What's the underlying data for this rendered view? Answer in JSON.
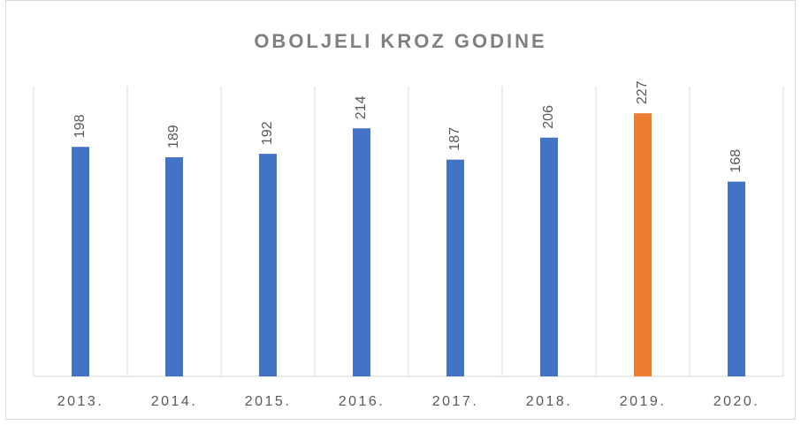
{
  "chart_data": {
    "type": "bar",
    "title": "OBOLJELI KROZ GODINE",
    "categories": [
      "2013.",
      "2014.",
      "2015.",
      "2016.",
      "2017.",
      "2018.",
      "2019.",
      "2020."
    ],
    "values": [
      198,
      189,
      192,
      214,
      187,
      206,
      227,
      168
    ],
    "colors": [
      "#4472c4",
      "#4472c4",
      "#4472c4",
      "#4472c4",
      "#4472c4",
      "#4472c4",
      "#ed7d31",
      "#4472c4"
    ],
    "ylim": [
      0,
      250
    ],
    "grid": false
  }
}
